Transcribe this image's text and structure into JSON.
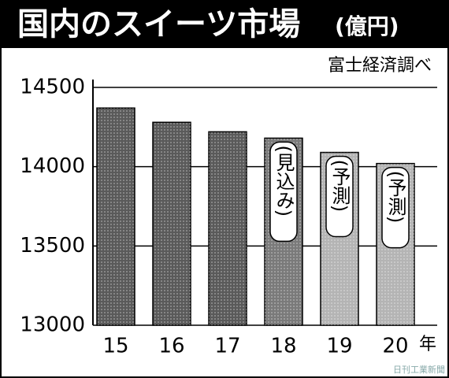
{
  "chart_data": {
    "type": "bar",
    "title": "国内のスイーツ市場",
    "subtitle": "(億円)",
    "source": "富士経済調べ",
    "credit": "日刊工業新聞",
    "x_unit": "年",
    "categories": [
      "15",
      "16",
      "17",
      "18",
      "19",
      "20"
    ],
    "values": [
      14370,
      14280,
      14220,
      14180,
      14090,
      14020
    ],
    "value_notes": [
      null,
      null,
      null,
      "(見込み)",
      "(予測)",
      "(予測)"
    ],
    "colors": [
      "#5a5a5a",
      "#5a5a5a",
      "#5a5a5a",
      "#7a7a7a",
      "#b4b4b4",
      "#b4b4b4"
    ],
    "ylim": [
      13000,
      14500
    ],
    "yticks": [
      13000,
      13500,
      14000,
      14500
    ],
    "grid": true
  }
}
